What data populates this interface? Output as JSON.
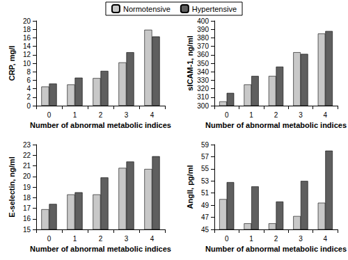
{
  "chart_data": [
    {
      "type": "bar",
      "x_label": "Number of abnormal metabolic indices",
      "y_label": "CRP, mg/l",
      "categories": [
        "0",
        "1",
        "2",
        "3",
        "4"
      ],
      "series": [
        {
          "name": "Normotensive",
          "color": "#c8c8c8",
          "values": [
            4.5,
            5.0,
            6.5,
            10.2,
            17.9
          ]
        },
        {
          "name": "Hypertensive",
          "color": "#5f5f5f",
          "values": [
            5.2,
            6.6,
            8.2,
            12.6,
            16.3
          ]
        }
      ],
      "ylim": [
        0,
        20
      ],
      "yticks": [
        0,
        2,
        4,
        6,
        8,
        10,
        12,
        14,
        16,
        18,
        20
      ],
      "grid": false,
      "legend": "top"
    },
    {
      "type": "bar",
      "x_label": "Number of abnormal metabolic indices",
      "y_label": "sICAM-1, ng/ml",
      "categories": [
        "0",
        "1",
        "2",
        "3",
        "4"
      ],
      "series": [
        {
          "name": "Normotensive",
          "color": "#c8c8c8",
          "values": [
            305,
            325,
            335,
            363,
            385
          ]
        },
        {
          "name": "Hypertensive",
          "color": "#5f5f5f",
          "values": [
            315,
            335,
            346,
            361,
            388
          ]
        }
      ],
      "ylim": [
        300,
        400
      ],
      "yticks": [
        300,
        310,
        320,
        330,
        340,
        350,
        360,
        370,
        380,
        390,
        400
      ],
      "grid": false
    },
    {
      "type": "bar",
      "x_label": "Number of abnormal metabolic indices",
      "y_label": "E-selectin, ng/ml",
      "categories": [
        "0",
        "1",
        "2",
        "3",
        "4"
      ],
      "series": [
        {
          "name": "Normotensive",
          "color": "#c8c8c8",
          "values": [
            16.9,
            18.3,
            18.3,
            20.8,
            20.7
          ]
        },
        {
          "name": "Hypertensive",
          "color": "#5f5f5f",
          "values": [
            17.4,
            18.5,
            19.9,
            21.4,
            21.9
          ]
        }
      ],
      "ylim": [
        15,
        23
      ],
      "yticks": [
        15,
        16,
        17,
        18,
        19,
        20,
        21,
        22,
        23
      ],
      "grid": false
    },
    {
      "type": "bar",
      "x_label": "Number of abnormal metabolic indices",
      "y_label": "AngII, pg/ml",
      "categories": [
        "0",
        "1",
        "2",
        "3",
        "4"
      ],
      "series": [
        {
          "name": "Normotensive",
          "color": "#c8c8c8",
          "values": [
            50.0,
            46.0,
            46.0,
            47.2,
            49.4
          ]
        },
        {
          "name": "Hypertensive",
          "color": "#5f5f5f",
          "values": [
            52.8,
            52.1,
            49.6,
            53.0,
            58.0
          ]
        }
      ],
      "ylim": [
        45,
        59
      ],
      "yticks": [
        45,
        47,
        49,
        51,
        53,
        55,
        57,
        59
      ],
      "grid": false
    }
  ]
}
